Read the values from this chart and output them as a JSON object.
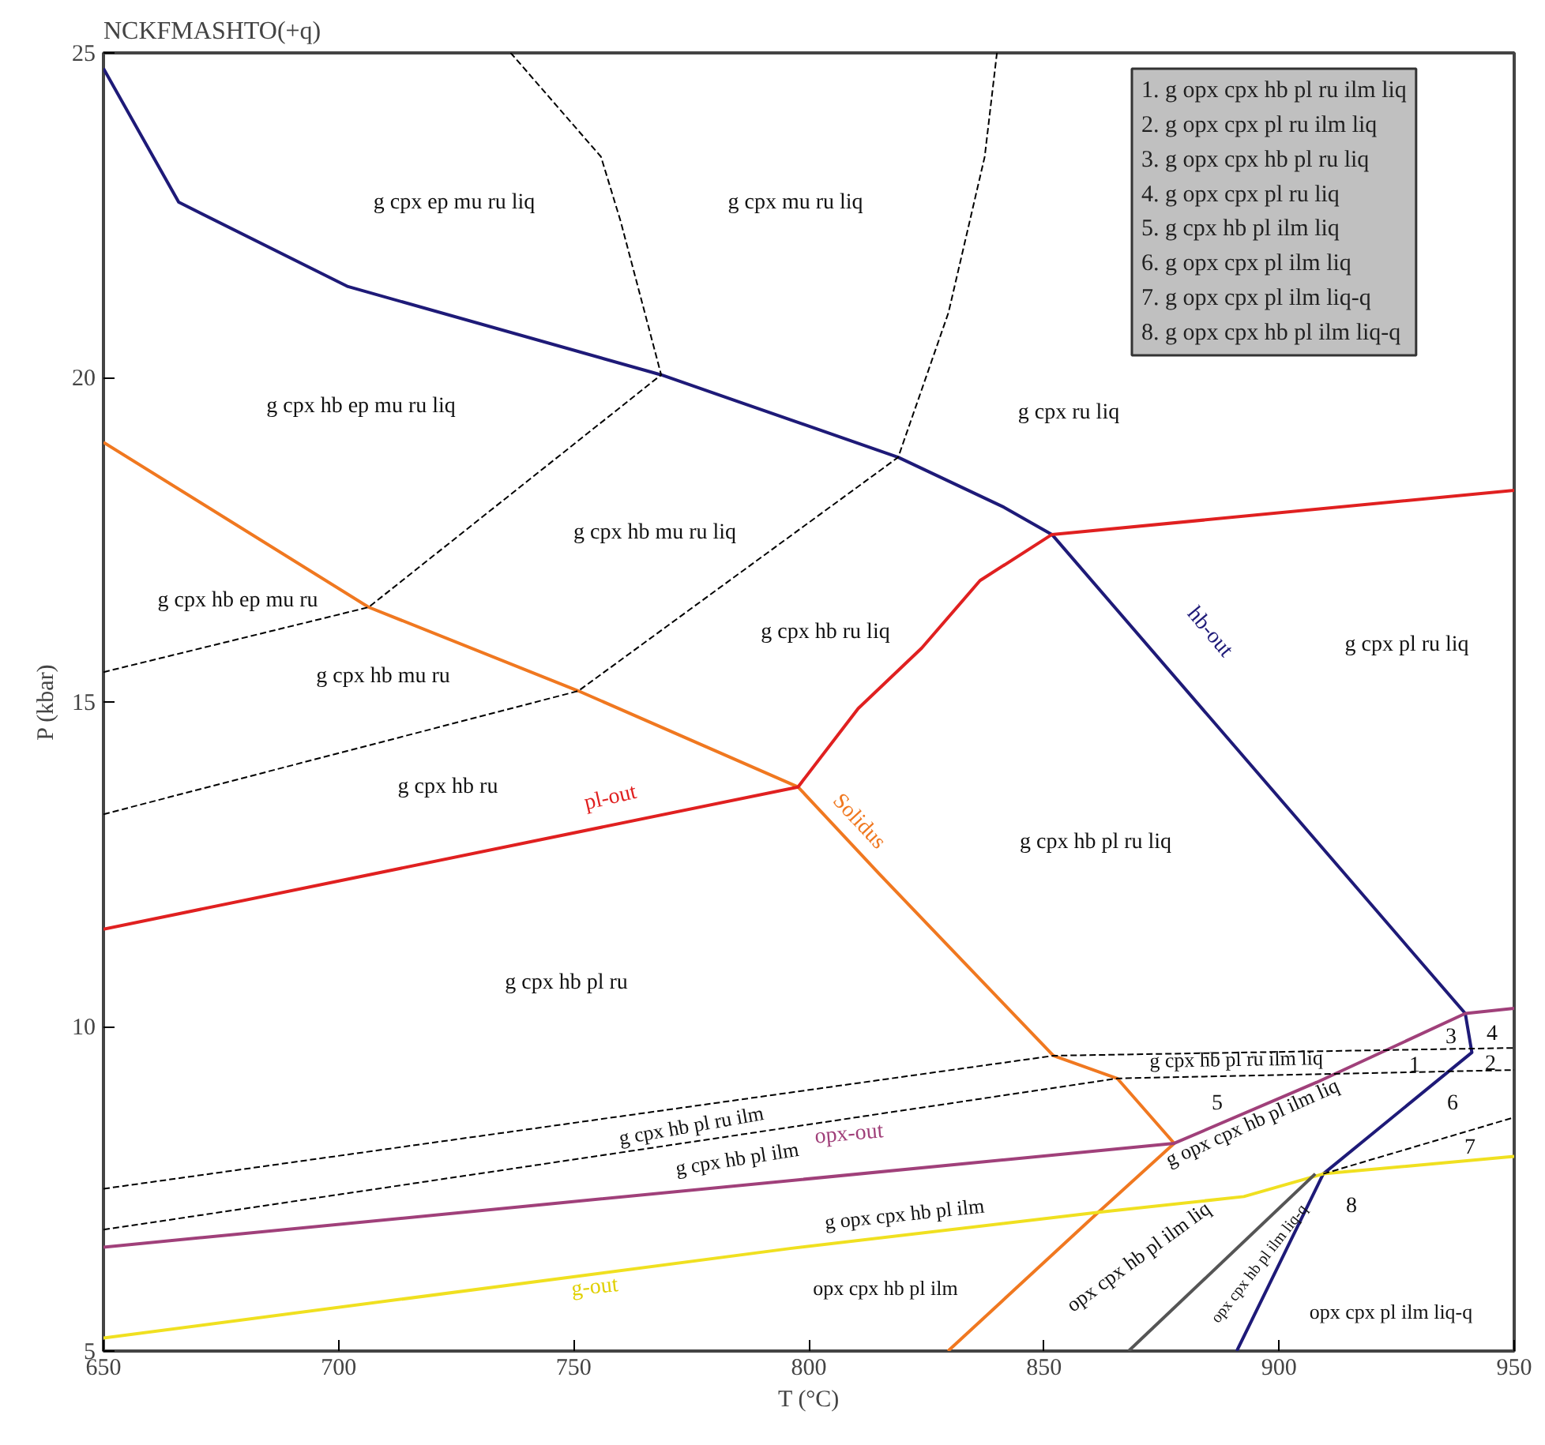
{
  "chart_data": {
    "type": "line",
    "title": "NCKFMASHTO(+q)",
    "xlabel": "T (°C)",
    "ylabel": "P (kbar)",
    "xlim": [
      650,
      950
    ],
    "ylim": [
      5,
      25
    ],
    "xticks": [
      650,
      700,
      750,
      800,
      850,
      900,
      950
    ],
    "yticks": [
      5,
      10,
      15,
      20,
      25
    ],
    "grid": false,
    "series": [
      {
        "color": "#1e1a78",
        "line_style": "solid",
        "x": [
          650,
          666,
          702,
          768.6,
          819,
          841.5,
          851.7,
          939.6,
          941,
          909.4,
          891
        ],
        "values": [
          24.76,
          22.7,
          21.4,
          20.04,
          18.77,
          18.0,
          17.58,
          10.2,
          9.6,
          7.73,
          5
        ]
      },
      {
        "color": "#f07820",
        "line_style": "solid",
        "x": [
          650,
          706.4,
          751,
          797.7,
          815,
          852,
          865.6,
          877.7,
          861.6,
          829.6
        ],
        "values": [
          19.0,
          16.46,
          15.17,
          13.69,
          12.35,
          9.55,
          9.2,
          8.2,
          7.14,
          5
        ]
      },
      {
        "color": "#e02020",
        "line_style": "solid",
        "x": [
          650,
          797.7,
          810.5,
          824,
          836.4,
          851.7,
          950
        ],
        "values": [
          11.5,
          13.69,
          14.9,
          15.83,
          16.87,
          17.58,
          18.26
        ]
      },
      {
        "color": "#a0407a",
        "line_style": "solid",
        "x": [
          650,
          877.7,
          908,
          939.6,
          950
        ],
        "values": [
          6.6,
          8.2,
          9.14,
          10.2,
          10.28
        ]
      },
      {
        "color": "#f0e020",
        "line_style": "solid",
        "x": [
          650,
          796,
          862,
          892.5,
          909.4,
          950
        ],
        "values": [
          5.2,
          6.58,
          7.14,
          7.38,
          7.73,
          8.0
        ]
      },
      {
        "color": "#000000",
        "line_style": "dashed",
        "x": [
          650,
          706.4,
          768.6,
          760,
          755.8,
          736.6
        ],
        "values": [
          15.46,
          16.46,
          20.04,
          22.4,
          23.4,
          25
        ]
      },
      {
        "color": "#000000",
        "line_style": "dashed",
        "x": [
          650,
          751,
          819,
          829.7,
          837.4,
          840
        ],
        "values": [
          13.27,
          15.17,
          18.77,
          21.0,
          23.4,
          25
        ]
      },
      {
        "color": "#000000",
        "line_style": "dashed",
        "x": [
          650,
          852,
          950
        ],
        "values": [
          7.5,
          9.55,
          9.67
        ]
      },
      {
        "color": "#000000",
        "line_style": "dashed",
        "x": [
          650,
          865.6,
          950
        ],
        "values": [
          6.87,
          9.2,
          9.33
        ]
      },
      {
        "color": "#000000",
        "line_style": "dashed",
        "x": [
          909.4,
          950
        ],
        "values": [
          7.73,
          8.6
        ]
      },
      {
        "color": "#555555",
        "line_style": "solid",
        "x": [
          907.7,
          868
        ],
        "values": [
          7.73,
          5
        ]
      }
    ],
    "annotations": [
      "g cpx ep mu ru liq",
      "g cpx mu ru liq",
      "g cpx hb ep mu ru liq",
      "g cpx ru liq",
      "g cpx hb mu ru liq",
      "g cpx hb ep mu ru",
      "g cpx hb ru liq",
      "g cpx pl ru liq",
      "g cpx hb mu ru",
      "g cpx hb ru",
      "g cpx hb pl ru liq",
      "g cpx hb pl ru",
      "g cpx hb pl ru ilm liq",
      "g cpx hb pl ru ilm",
      "g cpx hb pl ilm",
      "g opx cpx hb pl ilm",
      "opx cpx hb pl ilm",
      "g opx cpx hb pl ilm liq",
      "opx cpx hb pl ilm liq",
      "opx cpx hb pl ilm liq-q",
      "opx cpx pl ilm liq-q",
      "1",
      "2",
      "3",
      "4",
      "5",
      "6",
      "7",
      "8",
      "hb-out",
      "pl-out",
      "Solidus",
      "opx-out",
      "g-out",
      "1. g opx cpx hb pl ru ilm liq",
      "2. g opx cpx pl ru ilm liq",
      "3. g opx cpx hb pl ru liq",
      "4. g opx cpx pl ru liq",
      "5. g  cpx hb pl ilm liq",
      "6. g opx cpx pl ilm liq",
      "7. g opx cpx pl ilm liq-q",
      "8. g opx cpx hb pl ilm liq-q"
    ]
  }
}
